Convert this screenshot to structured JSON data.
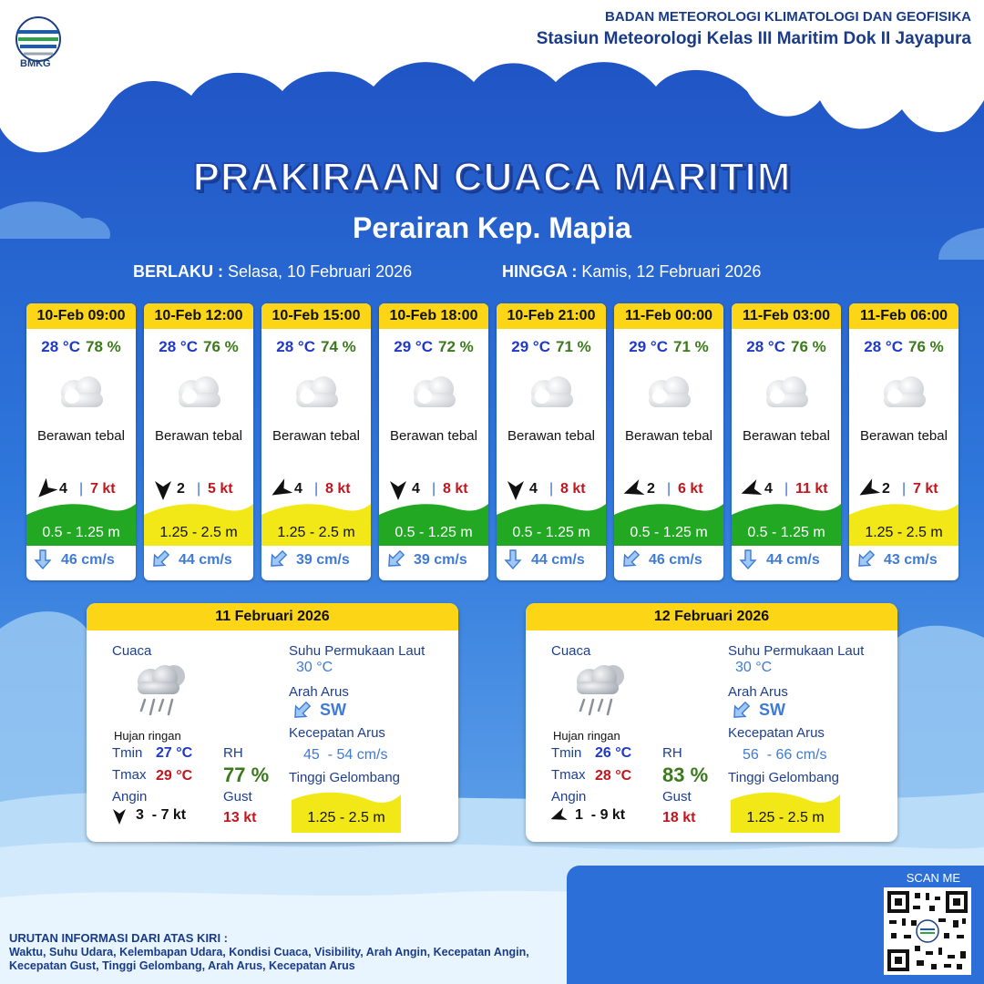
{
  "header": {
    "logo_text": "BMKG",
    "org_line1": "BADAN METEOROLOGI KLIMATOLOGI DAN GEOFISIKA",
    "org_line2": "Stasiun Meteorologi Kelas III Maritim Dok II Jayapura"
  },
  "title": "PRAKIRAAN CUACA MARITIM",
  "subtitle": "Perairan Kep. Mapia",
  "validity": {
    "from_label": "BERLAKU :",
    "from_value": "Selasa, 10 Februari 2026",
    "to_label": "HINGGA :",
    "to_value": "Kamis, 12 Februari 2026"
  },
  "colors": {
    "sky_blue": "#2a6fd6",
    "header_yellow": "#fbd516",
    "wave_green": "#23a823",
    "wave_yellow": "#f2e818",
    "temp_blue": "#1f39c8",
    "rh_green": "#3b7a1a",
    "gust_red": "#c0161d",
    "current_blue": "#3e7ad6"
  },
  "forecasts": [
    {
      "time": "10-Feb 09:00",
      "temp": "28 °C",
      "rh": "78 %",
      "weather": "Berawan tebal",
      "weather_icon": "cloudy-icon",
      "wind_speed": "4",
      "gust": "7 kt",
      "wind_icon": "wind-arrow-icon",
      "wind_dir_deg": 225,
      "wave": "0.5 - 1.25 m",
      "wave_level": "green",
      "current_icon": "current-arrow-icon",
      "current_dir_deg": 180,
      "current": "46 cm/s"
    },
    {
      "time": "10-Feb 12:00",
      "temp": "28 °C",
      "rh": "76 %",
      "weather": "Berawan tebal",
      "weather_icon": "cloudy-icon",
      "wind_speed": "2",
      "gust": "5 kt",
      "wind_icon": "wind-arrow-icon",
      "wind_dir_deg": 180,
      "wave": "1.25 - 2.5 m",
      "wave_level": "yellow",
      "current_icon": "current-arrow-icon",
      "current_dir_deg": 225,
      "current": "44 cm/s"
    },
    {
      "time": "10-Feb 15:00",
      "temp": "28 °C",
      "rh": "74 %",
      "weather": "Berawan tebal",
      "weather_icon": "cloudy-icon",
      "wind_speed": "4",
      "gust": "8 kt",
      "wind_icon": "wind-arrow-icon",
      "wind_dir_deg": 240,
      "wave": "1.25 - 2.5 m",
      "wave_level": "yellow",
      "current_icon": "current-arrow-icon",
      "current_dir_deg": 225,
      "current": "39 cm/s"
    },
    {
      "time": "10-Feb 18:00",
      "temp": "29 °C",
      "rh": "72 %",
      "weather": "Berawan tebal",
      "weather_icon": "cloudy-icon",
      "wind_speed": "4",
      "gust": "8 kt",
      "wind_icon": "wind-arrow-icon",
      "wind_dir_deg": 180,
      "wave": "0.5 - 1.25 m",
      "wave_level": "green",
      "current_icon": "current-arrow-icon",
      "current_dir_deg": 225,
      "current": "39 cm/s"
    },
    {
      "time": "10-Feb 21:00",
      "temp": "29 °C",
      "rh": "71 %",
      "weather": "Berawan tebal",
      "weather_icon": "cloudy-icon",
      "wind_speed": "4",
      "gust": "8 kt",
      "wind_icon": "wind-arrow-icon",
      "wind_dir_deg": 180,
      "wave": "0.5 - 1.25 m",
      "wave_level": "green",
      "current_icon": "current-arrow-icon",
      "current_dir_deg": 180,
      "current": "44 cm/s"
    },
    {
      "time": "11-Feb 00:00",
      "temp": "29 °C",
      "rh": "71 %",
      "weather": "Berawan tebal",
      "weather_icon": "cloudy-icon",
      "wind_speed": "2",
      "gust": "6 kt",
      "wind_icon": "wind-arrow-icon",
      "wind_dir_deg": 250,
      "wave": "0.5 - 1.25 m",
      "wave_level": "green",
      "current_icon": "current-arrow-icon",
      "current_dir_deg": 225,
      "current": "46 cm/s"
    },
    {
      "time": "11-Feb 03:00",
      "temp": "28 °C",
      "rh": "76 %",
      "weather": "Berawan tebal",
      "weather_icon": "cloudy-icon",
      "wind_speed": "4",
      "gust": "11 kt",
      "wind_icon": "wind-arrow-icon",
      "wind_dir_deg": 250,
      "wave": "0.5 - 1.25 m",
      "wave_level": "green",
      "current_icon": "current-arrow-icon",
      "current_dir_deg": 180,
      "current": "44 cm/s"
    },
    {
      "time": "11-Feb 06:00",
      "temp": "28 °C",
      "rh": "76 %",
      "weather": "Berawan tebal",
      "weather_icon": "cloudy-icon",
      "wind_speed": "2",
      "gust": "7 kt",
      "wind_icon": "wind-arrow-icon",
      "wind_dir_deg": 240,
      "wave": "1.25 - 2.5 m",
      "wave_level": "yellow",
      "current_icon": "current-arrow-icon",
      "current_dir_deg": 225,
      "current": "43 cm/s"
    }
  ],
  "daily": [
    {
      "date": "11 Februari 2026",
      "weather_label": "Cuaca",
      "weather": "Hujan ringan",
      "weather_icon": "light-rain-icon",
      "tmin_label": "Tmin",
      "tmin": "27 °C",
      "tmax_label": "Tmax",
      "tmax": "29 °C",
      "rh_label": "RH",
      "rh": "77 %",
      "wind_label": "Angin",
      "wind": "3  - 7 kt",
      "wind_dir_deg": 180,
      "gust_label": "Gust",
      "gust": "13 kt",
      "sst_label": "Suhu Permukaan Laut",
      "sst": "30 °C",
      "current_dir_label": "Arah Arus",
      "current_dir": "SW",
      "current_speed_label": "Kecepatan Arus",
      "current_speed": "45  - 54 cm/s",
      "wave_label": "Tinggi Gelombang",
      "wave": "1.25 - 2.5 m"
    },
    {
      "date": "12 Februari 2026",
      "weather_label": "Cuaca",
      "weather": "Hujan ringan",
      "weather_icon": "light-rain-icon",
      "tmin_label": "Tmin",
      "tmin": "26 °C",
      "tmax_label": "Tmax",
      "tmax": "28 °C",
      "rh_label": "RH",
      "rh": "83 %",
      "wind_label": "Angin",
      "wind": "1  - 9 kt",
      "wind_dir_deg": 250,
      "gust_label": "Gust",
      "gust": "18 kt",
      "sst_label": "Suhu Permukaan Laut",
      "sst": "30 °C",
      "current_dir_label": "Arah Arus",
      "current_dir": "SW",
      "current_speed_label": "Kecepatan Arus",
      "current_speed": "56  - 66 cm/s",
      "wave_label": "Tinggi Gelombang",
      "wave": "1.25 - 2.5 m"
    }
  ],
  "scan_label": "SCAN ME",
  "footer": {
    "title": "URUTAN INFORMASI DARI ATAS KIRI :",
    "text": "Waktu, Suhu Udara, Kelembapan Udara, Kondisi Cuaca, Visibility, Arah Angin, Kecepatan Angin, Kecepatan Gust, Tinggi Gelombang, Arah Arus, Kecepatan Arus"
  }
}
